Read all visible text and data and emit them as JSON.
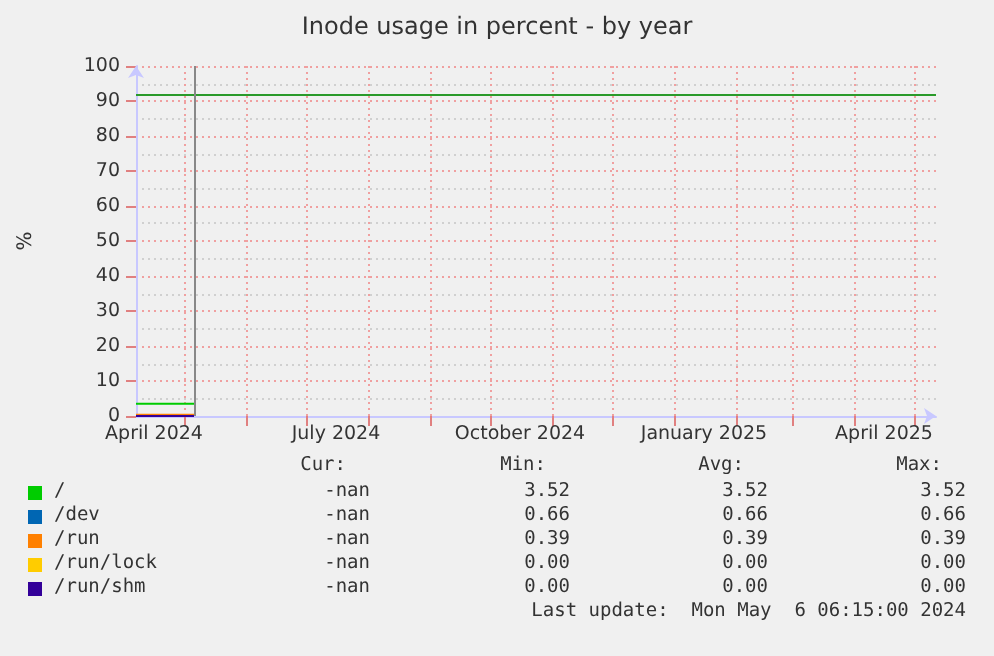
{
  "chart_data": {
    "type": "line",
    "title": "Inode usage in percent - by year",
    "ylabel": "%",
    "x": [
      "2024-04-07",
      "2024-05-06"
    ],
    "series": [
      {
        "name": "/",
        "color": "#00cc00",
        "values": [
          3.52,
          3.52
        ]
      },
      {
        "name": "/dev",
        "color": "#0066b3",
        "values": [
          null,
          null
        ]
      },
      {
        "name": "/run",
        "color": "#ff8000",
        "values": [
          0.39,
          0.39
        ]
      },
      {
        "name": "/run/lock",
        "color": "#ffcc00",
        "values": [
          null,
          null
        ]
      },
      {
        "name": "/run/shm",
        "color": "#330099",
        "values": [
          0,
          0
        ]
      }
    ],
    "xlim": [
      "2024-04-07",
      "2025-05-12"
    ],
    "xticks": [
      {
        "value": "2024-05-01",
        "label": null
      },
      {
        "value": "2024-06-01",
        "label": null
      },
      {
        "value": "2024-07-01",
        "label": null
      },
      {
        "value": "2024-08-01",
        "label": null
      },
      {
        "value": "2024-09-01",
        "label": null
      },
      {
        "value": "2024-10-01",
        "label": null
      },
      {
        "value": "2024-11-01",
        "label": null
      },
      {
        "value": "2024-12-01",
        "label": null
      },
      {
        "value": "2025-01-01",
        "label": null
      },
      {
        "value": "2025-02-01",
        "label": null
      },
      {
        "value": "2025-03-01",
        "label": null
      },
      {
        "value": "2025-04-01",
        "label": null
      },
      {
        "value": "2025-05-01",
        "label": null
      },
      {
        "value": "2024-04-16",
        "label": "April 2024"
      },
      {
        "value": "2024-07-16",
        "label": "July 2024"
      },
      {
        "value": "2024-10-16",
        "label": "October 2024"
      },
      {
        "value": "2025-01-16",
        "label": "January 2025"
      },
      {
        "value": "2025-04-16",
        "label": "April 2025"
      }
    ],
    "ylim": [
      0,
      100
    ],
    "yticks": [
      0,
      10,
      20,
      30,
      40,
      50,
      60,
      70,
      80,
      90,
      100
    ],
    "ref_lines": [
      {
        "axis": "y",
        "value": 92,
        "label": null,
        "color": "#2a9a2a"
      },
      {
        "axis": "x",
        "value": "2024-05-06",
        "label": null,
        "color": "#888888"
      }
    ],
    "annotations": [
      "Cur:",
      "Min:",
      "Avg:",
      "Max:",
      "-nan",
      "3.52",
      "3.52",
      "3.52",
      "-nan",
      "0.66",
      "0.66",
      "0.66",
      "-nan",
      "0.39",
      "0.39",
      "0.39",
      "-nan",
      "0.00",
      "0.00",
      "0.00",
      "-nan",
      "0.00",
      "0.00",
      "0.00",
      "Last update:  Mon May  6 06:15:00 2024"
    ],
    "grid": true,
    "legend": "bottom",
    "marker": "none",
    "line_style": "solid"
  }
}
